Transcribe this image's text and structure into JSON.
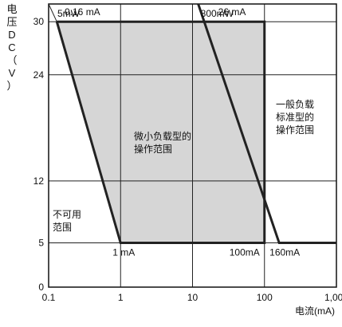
{
  "chart_data": {
    "type": "area",
    "title": "",
    "xlabel": "电流(mA)",
    "ylabel": [
      "电",
      "压",
      "D",
      "C",
      "（",
      "V",
      "）"
    ],
    "x_scale": "log",
    "xlim": [
      0.1,
      1000
    ],
    "ylim": [
      0,
      32
    ],
    "x_ticks": [
      "0.1",
      "1",
      "10",
      "100",
      "1,000"
    ],
    "x_tick_values": [
      0.1,
      1,
      10,
      100,
      1000
    ],
    "y_ticks": [
      "0",
      "5",
      "12",
      "24",
      "30"
    ],
    "y_tick_values": [
      0,
      5,
      12,
      24,
      30
    ],
    "grid": true,
    "series": [
      {
        "name": "微小负载型的操作范围",
        "color": "#d6d6d6",
        "points": [
          [
            0.13,
            30
          ],
          [
            100,
            30
          ],
          [
            100,
            5
          ],
          [
            1,
            5
          ],
          [
            0.13,
            30
          ]
        ]
      },
      {
        "name": "5mW",
        "color": "#222222",
        "points": [
          [
            0.1,
            32
          ],
          [
            0.13,
            30
          ]
        ]
      },
      {
        "name": "800mW",
        "color": "#222222",
        "points": [
          [
            12,
            32
          ],
          [
            160,
            5
          ],
          [
            1000,
            5
          ]
        ]
      }
    ],
    "annotations": [
      {
        "text": "5mW"
      },
      {
        "text": "800mW"
      },
      {
        "text": "0.16 mA"
      },
      {
        "text": "26 mA"
      },
      {
        "text": "1 mA"
      },
      {
        "text": "100mA"
      },
      {
        "text": "160mA"
      },
      {
        "text": "微小负载型的",
        "line2": "操作范围"
      },
      {
        "text": "一般负载",
        "line2": "标准型的",
        "line3": "操作范围"
      },
      {
        "text": "不可用",
        "line2": "范围"
      }
    ]
  }
}
